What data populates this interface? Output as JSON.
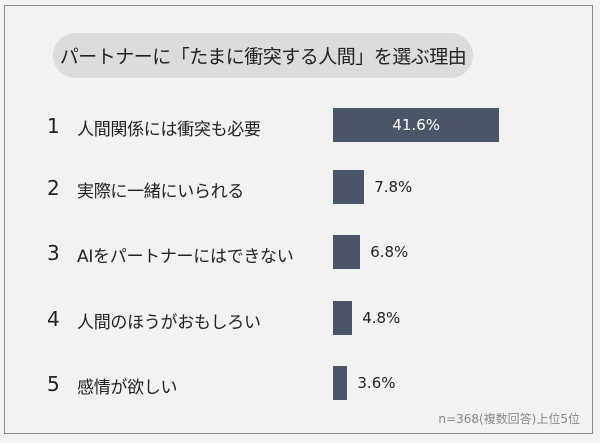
{
  "chart_data": {
    "type": "bar",
    "orientation": "horizontal",
    "title": "パートナーに「たまに衝突する人間」を選ぶ理由",
    "ranks": [
      "1",
      "2",
      "3",
      "4",
      "5"
    ],
    "categories": [
      "人間関係には衝突も必要",
      "実際に一緒にいられる",
      "AIをパートナーにはできない",
      "人間のほうがおもしろい",
      "感情が欲しい"
    ],
    "values": [
      41.6,
      7.8,
      6.8,
      4.8,
      3.6
    ],
    "value_labels": [
      "41.6%",
      "7.8%",
      "6.8%",
      "4.8%",
      "3.6%"
    ],
    "unit": "%",
    "bar_color": "#4a5666",
    "note": "n=368(複数回答)上位5位"
  }
}
